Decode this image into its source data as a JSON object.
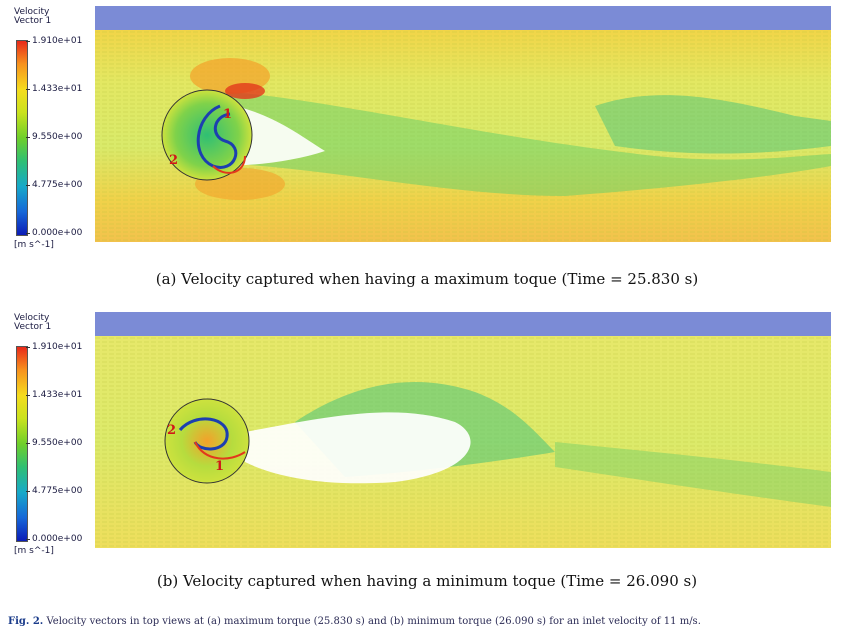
{
  "legend": {
    "title_line1": "Velocity",
    "title_line2": "Vector 1",
    "ticks": [
      "1.910e+01",
      "1.433e+01",
      "9.550e+00",
      "4.775e+00",
      "0.000e+00"
    ],
    "unit": "[m s^-1]"
  },
  "panels": [
    {
      "caption": "(a) Velocity captured when having a maximum toque (Time = 25.830 s)",
      "blade_labels": [
        "1",
        "2"
      ]
    },
    {
      "caption": "(b) Velocity captured when having a minimum toque (Time = 26.090 s)",
      "blade_labels": [
        "2",
        "1"
      ]
    }
  ],
  "figure_caption": {
    "label": "Fig. 2.",
    "text": "Velocity vectors in top views at (a) maximum torque (25.830 s) and (b) minimum torque (26.090 s) for an inlet velocity of 11 m/s."
  },
  "colors": {
    "band_blue": "#7b8bd6",
    "freestream": "#dfe85a",
    "fast": "#f3a12a",
    "peak": "#e2381c",
    "wake": "#2fbf74",
    "slow": "#ffffff",
    "blade_label": "#d01818"
  }
}
